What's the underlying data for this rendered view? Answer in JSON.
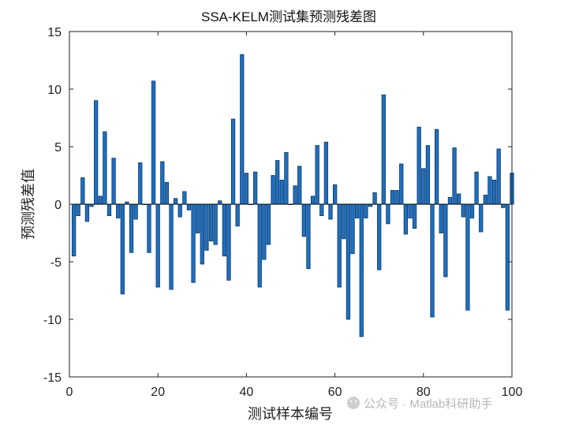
{
  "chart_data": {
    "type": "bar",
    "title": "SSA-KELM测试集预测残差图",
    "xlabel": "测试样本编号",
    "ylabel": "预测残差值",
    "xlim": [
      0,
      100
    ],
    "ylim": [
      -15,
      15
    ],
    "xticks": [
      0,
      20,
      40,
      60,
      80,
      100
    ],
    "yticks": [
      -15,
      -10,
      -5,
      0,
      5,
      10,
      15
    ],
    "x": [
      1,
      2,
      3,
      4,
      5,
      6,
      7,
      8,
      9,
      10,
      11,
      12,
      13,
      14,
      15,
      16,
      17,
      18,
      19,
      20,
      21,
      22,
      23,
      24,
      25,
      26,
      27,
      28,
      29,
      30,
      31,
      32,
      33,
      34,
      35,
      36,
      37,
      38,
      39,
      40,
      41,
      42,
      43,
      44,
      45,
      46,
      47,
      48,
      49,
      50,
      51,
      52,
      53,
      54,
      55,
      56,
      57,
      58,
      59,
      60,
      61,
      62,
      63,
      64,
      65,
      66,
      67,
      68,
      69,
      70,
      71,
      72,
      73,
      74,
      75,
      76,
      77,
      78,
      79,
      80,
      81,
      82,
      83,
      84,
      85,
      86,
      87,
      88,
      89,
      90,
      91,
      92,
      93,
      94,
      95,
      96,
      97,
      98,
      99,
      100
    ],
    "values": [
      -4.5,
      -1.0,
      2.3,
      -1.5,
      -0.2,
      9.0,
      0.7,
      6.3,
      -1.0,
      4.0,
      -1.2,
      -7.8,
      0.2,
      -4.2,
      -1.3,
      3.6,
      0.0,
      -4.2,
      10.7,
      -7.2,
      3.7,
      1.9,
      -7.4,
      0.5,
      -1.1,
      1.1,
      -0.5,
      -6.8,
      -2.5,
      -5.2,
      -4.0,
      -3.2,
      -3.5,
      0.3,
      -4.5,
      -6.6,
      7.4,
      -1.9,
      13.0,
      2.7,
      0.0,
      2.8,
      -7.2,
      -4.8,
      -3.5,
      2.5,
      3.8,
      2.1,
      4.5,
      0.0,
      1.6,
      3.3,
      -2.8,
      -5.6,
      0.7,
      5.1,
      -1.0,
      5.4,
      -1.3,
      1.7,
      -7.2,
      -3.0,
      -10.0,
      -4.3,
      -1.2,
      -11.5,
      -1.2,
      -0.2,
      1.0,
      -5.7,
      9.5,
      -1.7,
      1.2,
      1.2,
      3.5,
      -2.6,
      -1.2,
      -2.1,
      6.7,
      3.1,
      5.1,
      -9.8,
      6.5,
      -2.5,
      -6.3,
      0.6,
      4.9,
      0.9,
      -1.1,
      -9.2,
      -1.2,
      2.8,
      -2.4,
      0.8,
      2.4,
      2.1,
      4.8,
      -0.3,
      -9.2,
      2.7
    ],
    "bar_color": "#1f6fc0",
    "bar_edge_color": "#0c3a66"
  },
  "watermark": {
    "text": "公众号 · Matlab科研助手"
  }
}
